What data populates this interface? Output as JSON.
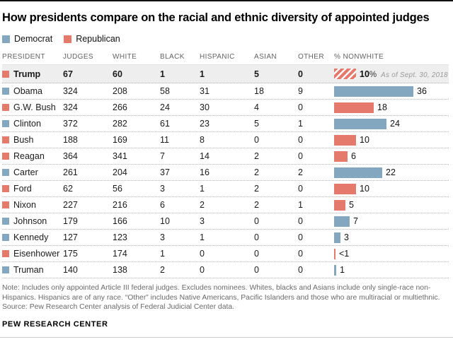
{
  "title": "How presidents compare on the racial and ethnic diversity of appointed judges",
  "legend": {
    "items": [
      {
        "label": "Democrat",
        "color": "#84a7c0"
      },
      {
        "label": "Republican",
        "color": "#e4796c"
      }
    ]
  },
  "colors": {
    "democrat": "#84a7c0",
    "republican": "#e4796c",
    "highlight_row_bg": "#eeeeee",
    "hatch_stripe": "#ffffff"
  },
  "chart_data": {
    "type": "table",
    "subtype": "table-with-bar-column",
    "title": "How presidents compare on the racial and ethnic diversity of appointed judges",
    "columns": [
      "PRESIDENT",
      "JUDGES",
      "WHITE",
      "BLACK",
      "HISPANIC",
      "ASIAN",
      "OTHER",
      "% NONWHITE"
    ],
    "bar_unit": "%",
    "bar_max": 36,
    "rows": [
      {
        "president": "Trump",
        "party": "Republican",
        "judges": 67,
        "white": 60,
        "black": 1,
        "hispanic": 1,
        "asian": 5,
        "other": 0,
        "pct_nonwhite": 10,
        "bar_label": "10",
        "bar_label_suffix": "%",
        "annotation": "As of Sept. 30, 2018",
        "hatched": true,
        "highlight": true
      },
      {
        "president": "Obama",
        "party": "Democrat",
        "judges": 324,
        "white": 208,
        "black": 58,
        "hispanic": 31,
        "asian": 18,
        "other": 9,
        "pct_nonwhite": 36,
        "bar_label": "36"
      },
      {
        "president": "G.W. Bush",
        "party": "Republican",
        "judges": 324,
        "white": 266,
        "black": 24,
        "hispanic": 30,
        "asian": 4,
        "other": 0,
        "pct_nonwhite": 18,
        "bar_label": "18"
      },
      {
        "president": "Clinton",
        "party": "Democrat",
        "judges": 372,
        "white": 282,
        "black": 61,
        "hispanic": 23,
        "asian": 5,
        "other": 1,
        "pct_nonwhite": 24,
        "bar_label": "24"
      },
      {
        "president": "Bush",
        "party": "Republican",
        "judges": 188,
        "white": 169,
        "black": 11,
        "hispanic": 8,
        "asian": 0,
        "other": 0,
        "pct_nonwhite": 10,
        "bar_label": "10"
      },
      {
        "president": "Reagan",
        "party": "Republican",
        "judges": 364,
        "white": 341,
        "black": 7,
        "hispanic": 14,
        "asian": 2,
        "other": 0,
        "pct_nonwhite": 6,
        "bar_label": "6"
      },
      {
        "president": "Carter",
        "party": "Democrat",
        "judges": 261,
        "white": 204,
        "black": 37,
        "hispanic": 16,
        "asian": 2,
        "other": 2,
        "pct_nonwhite": 22,
        "bar_label": "22"
      },
      {
        "president": "Ford",
        "party": "Republican",
        "judges": 62,
        "white": 56,
        "black": 3,
        "hispanic": 1,
        "asian": 2,
        "other": 0,
        "pct_nonwhite": 10,
        "bar_label": "10"
      },
      {
        "president": "Nixon",
        "party": "Republican",
        "judges": 227,
        "white": 216,
        "black": 6,
        "hispanic": 2,
        "asian": 2,
        "other": 1,
        "pct_nonwhite": 5,
        "bar_label": "5"
      },
      {
        "president": "Johnson",
        "party": "Democrat",
        "judges": 179,
        "white": 166,
        "black": 10,
        "hispanic": 3,
        "asian": 0,
        "other": 0,
        "pct_nonwhite": 7,
        "bar_label": "7"
      },
      {
        "president": "Kennedy",
        "party": "Democrat",
        "judges": 127,
        "white": 123,
        "black": 3,
        "hispanic": 1,
        "asian": 0,
        "other": 0,
        "pct_nonwhite": 3,
        "bar_label": "3"
      },
      {
        "president": "Eisenhower",
        "party": "Republican",
        "judges": 175,
        "white": 174,
        "black": 1,
        "hispanic": 0,
        "asian": 0,
        "other": 0,
        "pct_nonwhite": 0.5,
        "bar_label": "<1"
      },
      {
        "president": "Truman",
        "party": "Democrat",
        "judges": 140,
        "white": 138,
        "black": 2,
        "hispanic": 0,
        "asian": 0,
        "other": 0,
        "pct_nonwhite": 1,
        "bar_label": "1"
      }
    ]
  },
  "notes": {
    "note": "Note: Includes only appointed Article III federal judges. Excludes nominees. Whites, blacks and Asians include only single-race non-Hispanics. Hispanics are of any race. “Other” includes Native Americans, Pacific Islanders and those who are multiracial or multiethnic.",
    "source": "Source: Pew Research Center analysis of Federal Judicial Center data."
  },
  "footer": {
    "brand": "PEW RESEARCH CENTER"
  }
}
